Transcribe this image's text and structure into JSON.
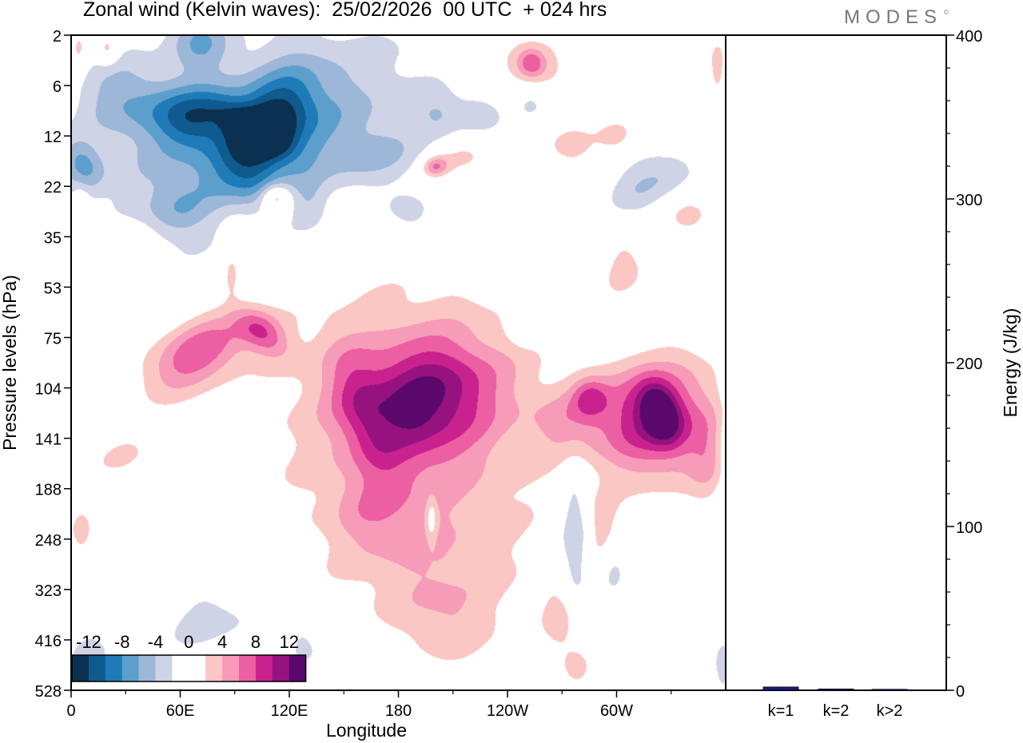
{
  "header": {
    "title": "Zonal wind (Kelvin waves):  25/02/2026  00 UTC  + 024 hrs",
    "logo_text": "MODES",
    "logo_mark": "©"
  },
  "chart_data": [
    {
      "type": "heatmap",
      "title": "Zonal wind (Kelvin waves):  25/02/2026  00 UTC  + 024 hrs",
      "xlabel": "Longitude",
      "ylabel": "Pressure levels (hPa)",
      "x_ticks": [
        {
          "lon": 0,
          "label": "0"
        },
        {
          "lon": 60,
          "label": "60E"
        },
        {
          "lon": 120,
          "label": "120E"
        },
        {
          "lon": 180,
          "label": "180"
        },
        {
          "lon": 240,
          "label": "120W"
        },
        {
          "lon": 300,
          "label": "60W"
        }
      ],
      "xlim": [
        0,
        360
      ],
      "y_levels": [
        "2",
        "6",
        "12",
        "22",
        "35",
        "53",
        "75",
        "104",
        "141",
        "188",
        "248",
        "323",
        "416",
        "528"
      ],
      "colorbar": {
        "labels": [
          "-12",
          "-8",
          "-4",
          "0",
          "4",
          "8",
          "12"
        ],
        "colors": [
          "#0b3050",
          "#0f5a8e",
          "#1e7bb8",
          "#5d9fcc",
          "#9cb7d8",
          "#cfd3e6",
          "#ffffff",
          "#ffffff",
          "#fbc7c4",
          "#f69bb8",
          "#ec5fa3",
          "#c9228f",
          "#96127f",
          "#5a086c"
        ]
      },
      "features": [
        {
          "label": "neg",
          "lon": 105,
          "lev": 2.05,
          "rx": 72,
          "ry": 1.35,
          "rot": -18,
          "v": -9,
          "s": 1.4
        },
        {
          "lon": 108,
          "lev": 1.8,
          "rx": 34,
          "ry": 0.6,
          "rot": -55,
          "v": -8
        },
        {
          "lon": 100,
          "lev": 1.85,
          "rx": 9,
          "ry": 0.75,
          "rot": -60,
          "v": -6
        },
        {
          "lon": 62,
          "lev": 1.55,
          "rx": 22,
          "ry": 0.55,
          "rot": 0,
          "v": -5
        },
        {
          "lon": 28,
          "lev": 1.2,
          "rx": 22,
          "ry": 0.9,
          "rot": -70,
          "v": -4
        },
        {
          "lon": 6,
          "lev": 2.55,
          "rx": 10,
          "ry": 0.5,
          "rot": -30,
          "v": -5
        },
        {
          "lon": 60,
          "lev": 3.5,
          "rx": 16,
          "ry": 0.5,
          "rot": -30,
          "v": -3
        },
        {
          "lon": 70,
          "lev": 0.1,
          "rx": 16,
          "ry": 0.6,
          "rot": -40,
          "v": -5
        },
        {
          "lon": 72,
          "lev": 1.6,
          "rx": 20,
          "ry": 0.5,
          "rot": -30,
          "v": -3
        },
        {
          "lon": 102,
          "lev": 3.2,
          "rx": 12,
          "ry": 0.55,
          "rot": 0,
          "v": -2.5
        },
        {
          "lon": 130,
          "lev": 3.3,
          "rx": 10,
          "ry": 0.5,
          "rot": 0,
          "v": -2.5
        },
        {
          "lon": 168,
          "lev": 2.4,
          "rx": 20,
          "ry": 0.45,
          "rot": -15,
          "v": -2.5
        },
        {
          "lon": 188,
          "lev": 3.6,
          "rx": 14,
          "ry": 0.5,
          "rot": 0,
          "v": -2.5
        },
        {
          "lon": 202,
          "lev": 1.6,
          "rx": 12,
          "ry": 0.4,
          "rot": -10,
          "v": -2.5
        },
        {
          "lon": 224,
          "lev": 1.5,
          "rx": 14,
          "ry": 0.4,
          "rot": -10,
          "v": -2.5
        },
        {
          "lon": 300,
          "lev": 5.8,
          "rx": 25,
          "ry": 0.45,
          "rot": -35,
          "v": -3
        },
        {
          "lon": 312,
          "lev": 3.0,
          "rx": 20,
          "ry": 0.55,
          "rot": -35,
          "v": -3.5
        },
        {
          "lon": 332,
          "lev": 2.7,
          "rx": 16,
          "ry": 0.4,
          "rot": -30,
          "v": -2.5
        },
        {
          "lon": 253,
          "lev": 1.3,
          "rx": 10,
          "ry": 0.4,
          "rot": -20,
          "v": -2.5
        },
        {
          "lon": 248,
          "lev": 5.7,
          "rx": 8,
          "ry": 0.45,
          "rot": 0,
          "v": -2.5
        },
        {
          "lon": 277,
          "lev": 10,
          "rx": 8,
          "ry": 1.4,
          "rot": 0,
          "v": -4.5
        },
        {
          "lon": 298,
          "lev": 10.6,
          "rx": 7,
          "ry": 0.6,
          "rot": 0,
          "v": -2.5
        },
        {
          "lon": 78,
          "lev": 11.6,
          "rx": 35,
          "ry": 1.0,
          "rot": 0,
          "v": -2.5
        },
        {
          "lon": 128,
          "lev": 12,
          "rx": 12,
          "ry": 0.8,
          "rot": 0,
          "v": -2.5
        },
        {
          "lon": 8,
          "lev": 12.3,
          "rx": 14,
          "ry": 0.7,
          "rot": 0,
          "v": -2.5
        },
        {
          "lon": 358,
          "lev": 12.5,
          "rx": 6,
          "ry": 0.8,
          "rot": 0,
          "v": -2.5
        },
        {
          "label": "pos",
          "lon": 188,
          "lev": 7.6,
          "rx": 50,
          "ry": 1.8,
          "rot": 0,
          "v": 9,
          "s": 1.3
        },
        {
          "lon": 200,
          "lev": 7.0,
          "rx": 36,
          "ry": 1.0,
          "rot": -10,
          "v": 6
        },
        {
          "lon": 160,
          "lev": 7.4,
          "rx": 15,
          "ry": 1.4,
          "rot": -20,
          "v": 4
        },
        {
          "lon": 165,
          "lev": 9.5,
          "rx": 22,
          "ry": 0.8,
          "rot": 0,
          "v": 2.5
        },
        {
          "lon": 198,
          "lev": 10.6,
          "rx": 48,
          "ry": 1.3,
          "rot": 0,
          "v": 2.5
        },
        {
          "lon": 208,
          "lev": 11.7,
          "rx": 24,
          "ry": 0.8,
          "rot": 0,
          "v": 2.5
        },
        {
          "lon": 268,
          "lev": 11.5,
          "rx": 10,
          "ry": 0.7,
          "rot": 0,
          "v": 2.5
        },
        {
          "lon": 312,
          "lev": 7.6,
          "rx": 30,
          "ry": 1.1,
          "rot": 0,
          "v": 7.5
        },
        {
          "lon": 324,
          "lev": 7.5,
          "rx": 10,
          "ry": 0.6,
          "rot": -20,
          "v": 8
        },
        {
          "lon": 337,
          "lev": 7.6,
          "rx": 28,
          "ry": 1.2,
          "rot": 0,
          "v": 4
        },
        {
          "lon": 270,
          "lev": 7.7,
          "rx": 18,
          "ry": 0.55,
          "rot": 0,
          "v": 3
        },
        {
          "lon": 285,
          "lev": 7.2,
          "rx": 10,
          "ry": 0.4,
          "rot": 0,
          "v": 5
        },
        {
          "lon": 292,
          "lev": 9.8,
          "rx": 10,
          "ry": 0.7,
          "rot": 0,
          "v": 2.5
        },
        {
          "lon": 350,
          "lev": 8.5,
          "rx": 10,
          "ry": 0.8,
          "rot": 0,
          "v": 2.5
        },
        {
          "lon": 70,
          "lev": 6.3,
          "rx": 32,
          "ry": 0.6,
          "rot": -30,
          "v": 7.5
        },
        {
          "lon": 105,
          "lev": 5.9,
          "rx": 10,
          "ry": 0.6,
          "rot": -50,
          "v": 6
        },
        {
          "lon": 25,
          "lev": 8.3,
          "rx": 18,
          "ry": 0.4,
          "rot": -30,
          "v": 2.5
        },
        {
          "lon": 5,
          "lev": 9.8,
          "rx": 8,
          "ry": 0.8,
          "rot": 0,
          "v": 2.5
        },
        {
          "lon": 250,
          "lev": 0.6,
          "rx": 30,
          "ry": 0.6,
          "rot": -15,
          "v": 3
        },
        {
          "lon": 253,
          "lev": 0.55,
          "rx": 8,
          "ry": 0.3,
          "rot": -20,
          "v": 6
        },
        {
          "lon": 215,
          "lev": 2.4,
          "rx": 15,
          "ry": 0.35,
          "rot": -10,
          "v": 3
        },
        {
          "lon": 200,
          "lev": 2.6,
          "rx": 7,
          "ry": 0.2,
          "rot": -10,
          "v": 6
        },
        {
          "lon": 275,
          "lev": 2.2,
          "rx": 16,
          "ry": 0.5,
          "rot": -30,
          "v": 3
        },
        {
          "lon": 300,
          "lev": 2.0,
          "rx": 10,
          "ry": 0.3,
          "rot": -10,
          "v": 2.5
        },
        {
          "lon": 355,
          "lev": 0.6,
          "rx": 6,
          "ry": 0.6,
          "rot": 0,
          "v": 2.5
        },
        {
          "lon": 303,
          "lev": 4.6,
          "rx": 12,
          "ry": 0.8,
          "rot": 0,
          "v": 2.5
        },
        {
          "lon": 340,
          "lev": 3.6,
          "rx": 14,
          "ry": 0.5,
          "rot": 0,
          "v": 2.5
        },
        {
          "lon": 104,
          "lev": 3.4,
          "rx": 30,
          "ry": 0.45,
          "rot": -10,
          "v": 2.5
        },
        {
          "lon": 112,
          "lev": 3.2,
          "rx": 8,
          "ry": 0.25,
          "rot": 0,
          "v": 5
        },
        {
          "lon": 155,
          "lev": 3.6,
          "rx": 10,
          "ry": 0.35,
          "rot": 0,
          "v": 2.5
        },
        {
          "lon": 30,
          "lev": 3.9,
          "rx": 14,
          "ry": 0.3,
          "rot": 0,
          "v": 2.5
        },
        {
          "lon": 88,
          "lev": 4.6,
          "rx": 5,
          "ry": 0.6,
          "rot": 0,
          "v": 2.5
        },
        {
          "lon": 20,
          "lev": 0.3,
          "rx": 6,
          "ry": 0.3,
          "rot": 0,
          "v": 3.5
        },
        {
          "lon": 4,
          "lev": 0.3,
          "rx": 5,
          "ry": 0.5,
          "rot": 0,
          "v": 2.5
        },
        {
          "lon": 5,
          "lev": 3.4,
          "rx": 4,
          "ry": 0.4,
          "rot": 0,
          "v": 2.5
        },
        {
          "lon": 278,
          "lev": 12.5,
          "rx": 10,
          "ry": 0.7,
          "rot": 0,
          "v": 2.5
        },
        {
          "label": "hole",
          "lon": 198,
          "lev": 9.6,
          "rx": 3,
          "ry": 0.5,
          "rot": 0,
          "v": -3.5
        },
        {
          "lon": 360,
          "lev": 8.0,
          "rx": 6,
          "ry": 1.0,
          "rot": 0,
          "v": -2.5
        }
      ]
    },
    {
      "type": "bar",
      "categories": [
        "k=1",
        "k=2",
        "k>2"
      ],
      "values": [
        2,
        0.8,
        0.6
      ],
      "ylabel": "Energy (J/kg)",
      "ylim": [
        0,
        400
      ],
      "y_ticks": [
        "0",
        "100",
        "200",
        "300",
        "400"
      ],
      "bar_color": "#1a1a7a"
    }
  ]
}
